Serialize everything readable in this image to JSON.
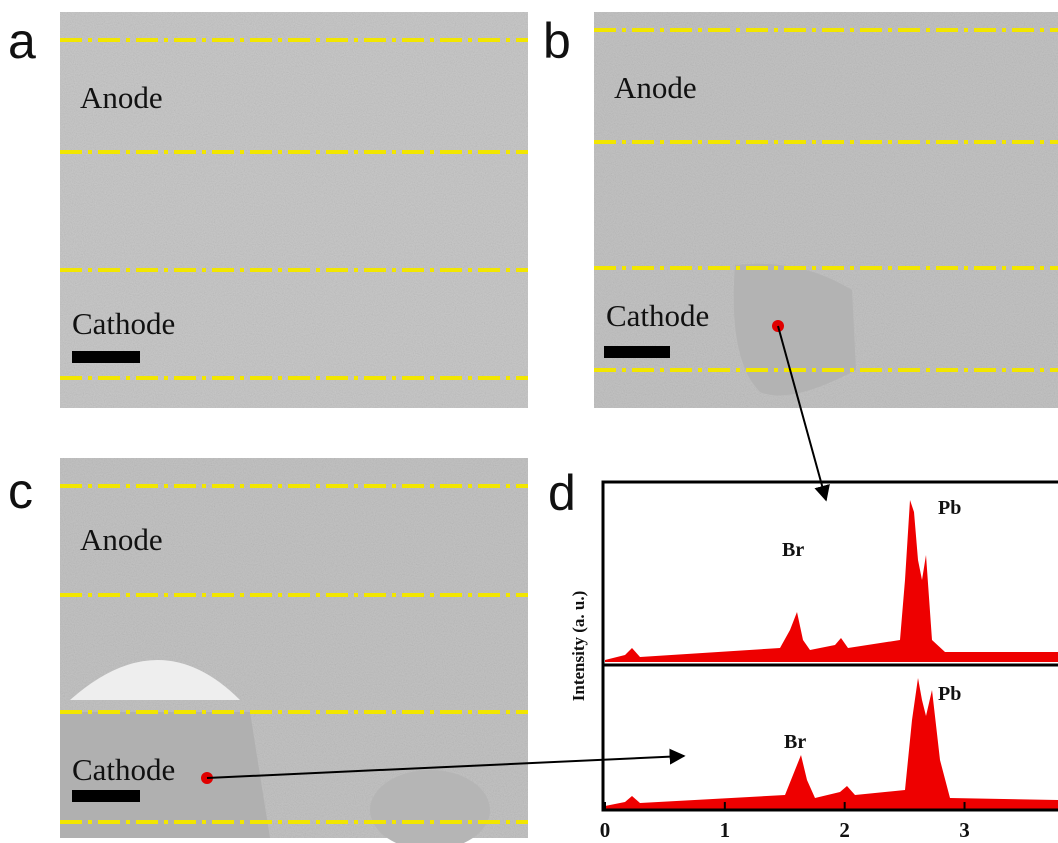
{
  "panels": [
    {
      "label": "a",
      "anode": "Anode",
      "cathode": "Cathode"
    },
    {
      "label": "b",
      "anode": "Anode",
      "cathode": "Cathode"
    },
    {
      "label": "c",
      "anode": "Anode",
      "cathode": "Cathode"
    }
  ],
  "spectrum": {
    "label": "d",
    "ylabel": "Intensity (a. u.)",
    "xlim": [
      0,
      3.78
    ],
    "xticks": [
      0,
      1,
      2,
      3
    ],
    "top": {
      "peaks": [
        "Br",
        "Pb"
      ]
    },
    "bottom": {
      "peaks": [
        "Br",
        "Pb"
      ]
    }
  }
}
